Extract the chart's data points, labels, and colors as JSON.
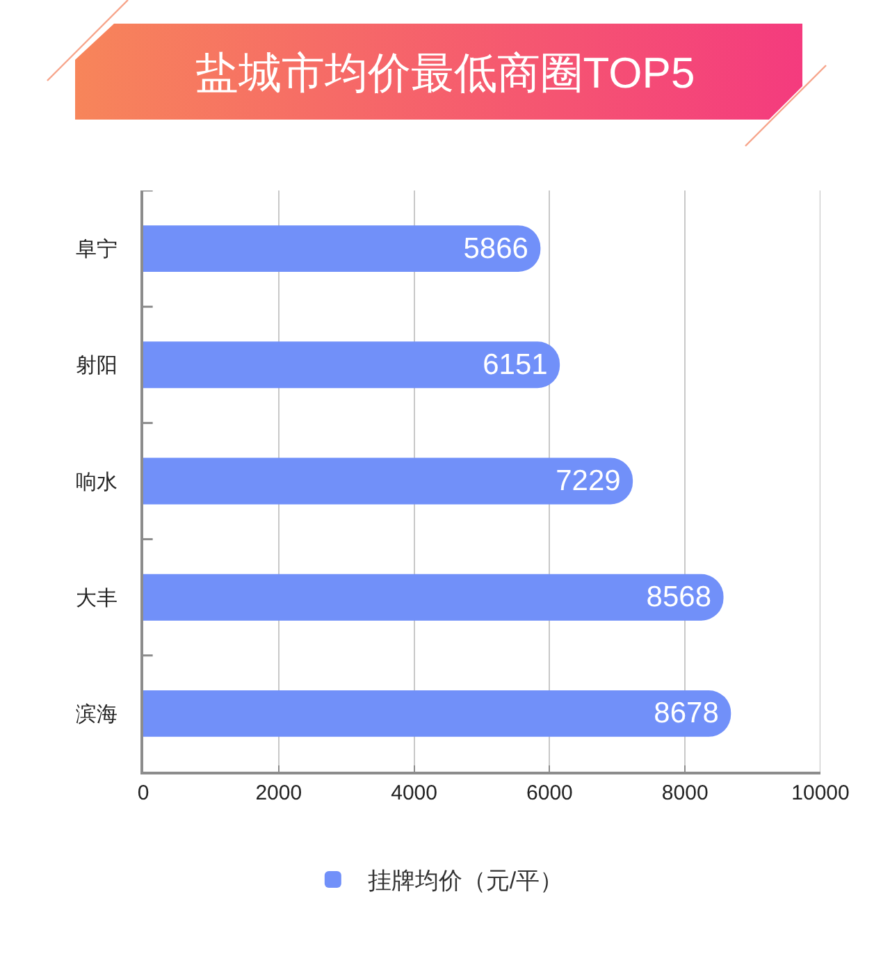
{
  "chart_data": {
    "type": "bar",
    "title": "盐城市均价最低商圈TOP5",
    "orientation": "horizontal",
    "categories": [
      "阜宁",
      "射阳",
      "响水",
      "大丰",
      "滨海"
    ],
    "series": [
      {
        "name": "挂牌均价（元/平）",
        "color": "#7190f9",
        "values": [
          5866,
          6151,
          7229,
          8568,
          8678
        ]
      }
    ],
    "xlim": [
      0,
      10000
    ],
    "xticks": [
      0,
      2000,
      4000,
      6000,
      8000,
      10000
    ],
    "grid": "x",
    "legend": "bottom",
    "data_labels": true
  }
}
